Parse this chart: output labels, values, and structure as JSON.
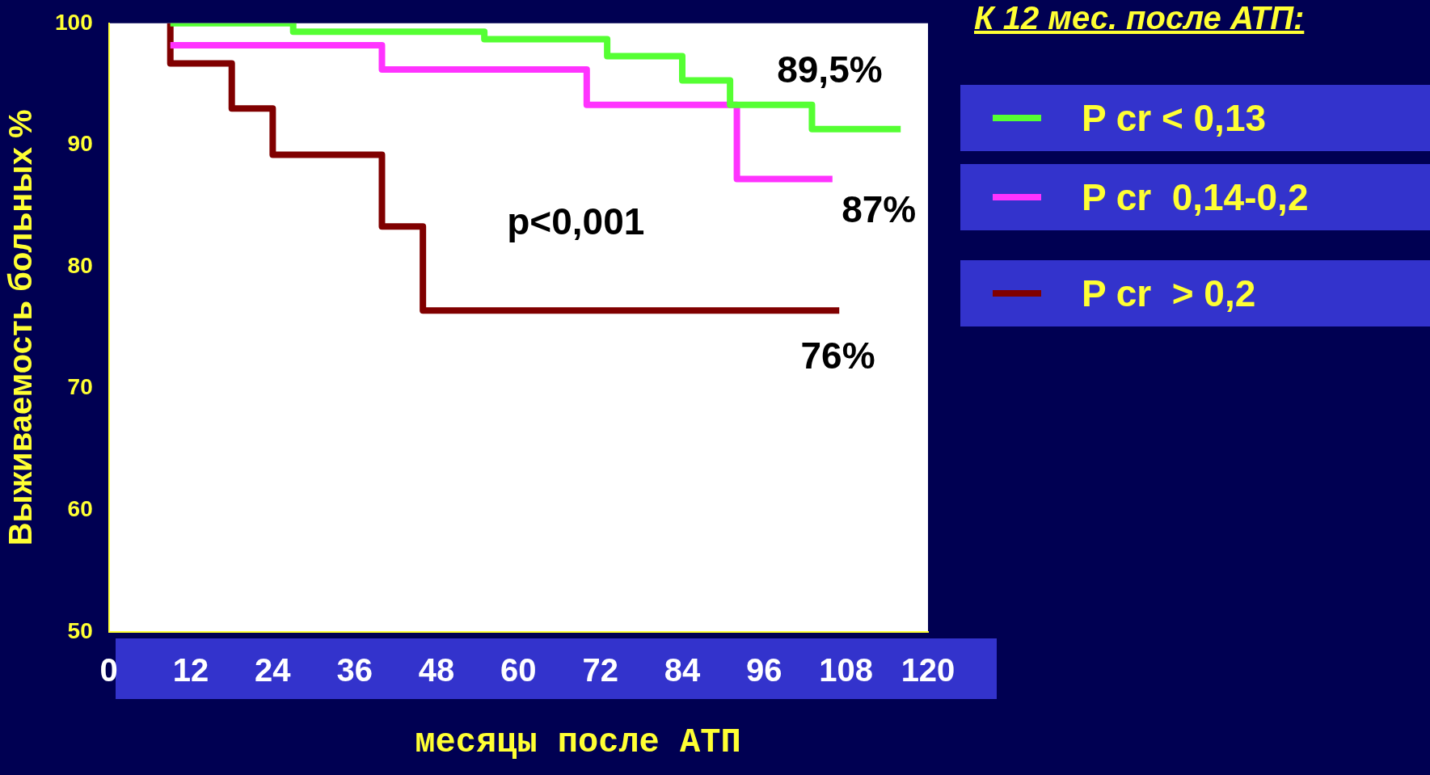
{
  "chart_data": {
    "type": "step",
    "xlabel": "месяцы после АТП",
    "ylabel": "Выживаемость больных %",
    "legend_title": "К 12 мес. после АТП:",
    "legend": "right",
    "xlim": [
      0,
      120
    ],
    "xticks": [
      0,
      12,
      24,
      36,
      48,
      60,
      72,
      84,
      96,
      108,
      120
    ],
    "ylim": [
      50,
      100
    ],
    "yticks": [
      50,
      60,
      70,
      80,
      90,
      100
    ],
    "grid": false,
    "line_style": "solid",
    "marker": "none",
    "series": [
      {
        "name": "P cr < 0,13",
        "color": "#55ff33",
        "x": [
          9,
          27,
          55,
          73,
          84,
          91,
          103,
          116
        ],
        "values": [
          100,
          99.3,
          98.7,
          97.3,
          95.3,
          93.3,
          91.3,
          91.3
        ]
      },
      {
        "name": "P cr  0,14-0,2",
        "color": "#ff33ff",
        "x": [
          9,
          40,
          70,
          92,
          106
        ],
        "values": [
          98.2,
          96.2,
          93.3,
          87.2,
          87.2
        ]
      },
      {
        "name": "P cr  > 0,2",
        "color": "#800000",
        "x": [
          9,
          9,
          18,
          24,
          40,
          46,
          107
        ],
        "values": [
          100,
          96.7,
          93,
          89.2,
          83.3,
          76.4,
          76.4
        ]
      }
    ],
    "annotations": [
      "89,5%",
      "87%",
      "76%",
      "p<0,001"
    ]
  }
}
